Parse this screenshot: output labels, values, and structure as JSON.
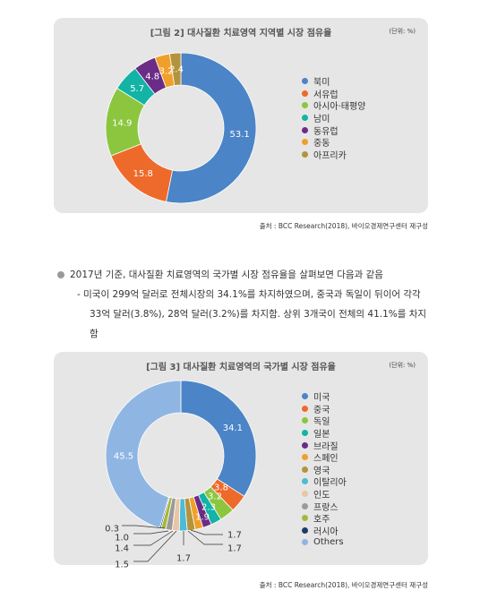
{
  "figure1": {
    "title": "[그림 2] 대사질환 치료영역 지역별 시장 점유율",
    "unit": "(단위: %)",
    "source": "출처 : BCC Research(2018), 바이오경제연구센터 재구성"
  },
  "figure2": {
    "title": "[그림 3] 대사질환 치료영역의 국가별 시장 점유율",
    "unit": "(단위: %)",
    "source": "출처 : BCC Research(2018), 바이오경제연구센터 재구성"
  },
  "text": {
    "line1": "2017년 기준, 대사질환 치료영역의 국가별 시장 점유율을 살펴보면 다음과 같음",
    "line2": "- 미국이 299억 달러로 전체시장의 34.1%를 차지하였으며, 중국과 독일이 뒤이어 각각",
    "line3": "33억 달러(3.8%), 28억 달러(3.2%)를 차지함. 상위 3개국이 전체의 41.1%를 차지함"
  },
  "chart_data": [
    {
      "type": "pie",
      "variant": "donut",
      "title": "[그림 2] 대사질환 치료영역 지역별 시장 점유율",
      "unit": "(단위: %)",
      "categories": [
        "북미",
        "서유럽",
        "아시아·태평양",
        "남미",
        "동유럽",
        "중동",
        "아프리카"
      ],
      "values": [
        53.1,
        15.8,
        14.9,
        5.7,
        4.8,
        3.2,
        2.4
      ],
      "colors": [
        "#4b84c7",
        "#ee6a2b",
        "#8cc63f",
        "#13b3a6",
        "#6b2c86",
        "#f0a02a",
        "#b3933c"
      ],
      "legend": "right"
    },
    {
      "type": "pie",
      "variant": "donut",
      "title": "[그림 3] 대사질환 치료영역의 국가별 시장 점유율",
      "unit": "(단위: %)",
      "categories": [
        "미국",
        "중국",
        "독일",
        "일본",
        "브라질",
        "스페인",
        "영국",
        "이탈리아",
        "인도",
        "프랑스",
        "호주",
        "러시아",
        "Others"
      ],
      "values": [
        34.1,
        3.8,
        3.2,
        2.3,
        1.9,
        1.7,
        1.7,
        1.7,
        1.5,
        1.4,
        1.0,
        0.3,
        45.5
      ],
      "colors": [
        "#4b84c7",
        "#ee6a2b",
        "#8cc63f",
        "#13b3a6",
        "#6b2c86",
        "#f0a02a",
        "#b3933c",
        "#4bbbd6",
        "#e8c5a6",
        "#9a9a9a",
        "#a5b83a",
        "#1d3b6b",
        "#8fb6e3"
      ],
      "legend": "right"
    }
  ]
}
